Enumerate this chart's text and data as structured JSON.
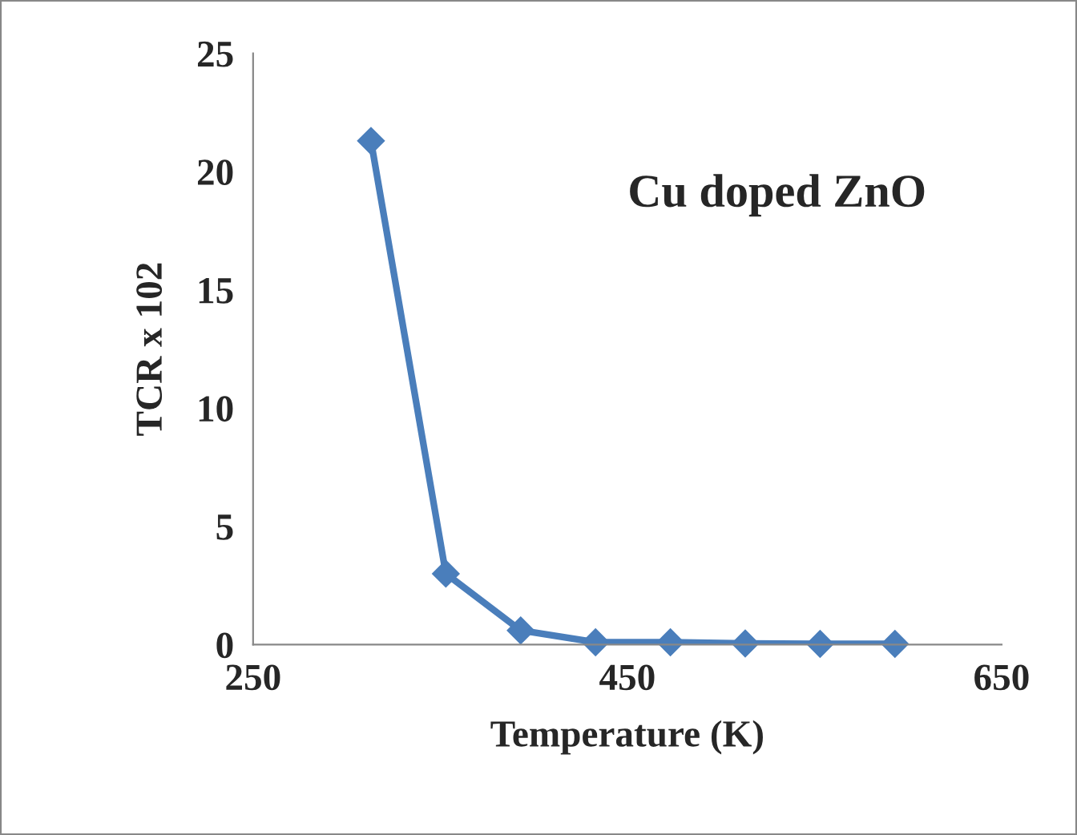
{
  "chart_data": {
    "type": "line",
    "xlabel": "Temperature (K)",
    "ylabel": "TCR x 102",
    "annotations": [
      "Cu doped ZnO"
    ],
    "x": [
      313,
      353,
      393,
      433,
      473,
      513,
      553,
      593
    ],
    "series": [
      {
        "color": "#4a7ebb",
        "values": [
          21.3,
          3.0,
          0.6,
          0.1,
          0.1,
          0.05,
          0.03,
          0.03
        ]
      }
    ],
    "xlim": [
      250,
      650
    ],
    "xticks": [
      250,
      450,
      650
    ],
    "ylim": [
      0,
      25
    ],
    "yticks": [
      0,
      5,
      10,
      15,
      20,
      25
    ],
    "marker": "diamond",
    "line_style": "solid",
    "grid": false,
    "legend": false
  }
}
